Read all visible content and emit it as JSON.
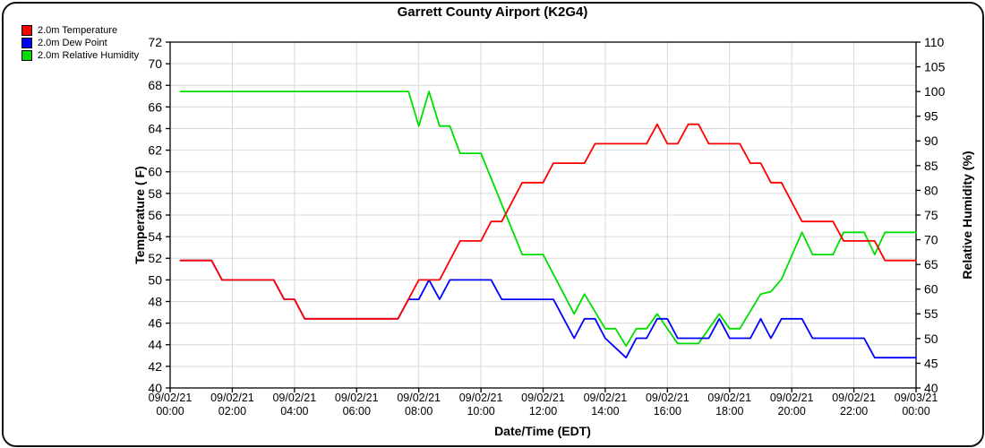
{
  "title": "Garrett County Airport (K2G4)",
  "legend": [
    {
      "label": "2.0m Temperature",
      "color": "#ff0000"
    },
    {
      "label": "2.0m Dew Point",
      "color": "#0000ff"
    },
    {
      "label": "2.0m Relative Humidity",
      "color": "#00dd00"
    }
  ],
  "colors": {
    "grid": "#d9d9d9",
    "frame": "#000000",
    "background": "#ffffff"
  },
  "chart_data": {
    "type": "line",
    "title": "Garrett County Airport (K2G4)",
    "xlabel": "Date/Time (EDT)",
    "ylabel_left": "Temperature ( F)",
    "ylabel_right": "Relative Humidity (%)",
    "grid": true,
    "legend_position": "top-left",
    "x_hours_range": [
      0,
      24
    ],
    "x_ticks": [
      {
        "hour": 0,
        "date": "09/02/21",
        "time": "00:00"
      },
      {
        "hour": 2,
        "date": "09/02/21",
        "time": "02:00"
      },
      {
        "hour": 4,
        "date": "09/02/21",
        "time": "04:00"
      },
      {
        "hour": 6,
        "date": "09/02/21",
        "time": "06:00"
      },
      {
        "hour": 8,
        "date": "09/02/21",
        "time": "08:00"
      },
      {
        "hour": 10,
        "date": "09/02/21",
        "time": "10:00"
      },
      {
        "hour": 12,
        "date": "09/02/21",
        "time": "12:00"
      },
      {
        "hour": 14,
        "date": "09/02/21",
        "time": "14:00"
      },
      {
        "hour": 16,
        "date": "09/02/21",
        "time": "16:00"
      },
      {
        "hour": 18,
        "date": "09/02/21",
        "time": "18:00"
      },
      {
        "hour": 20,
        "date": "09/02/21",
        "time": "20:00"
      },
      {
        "hour": 22,
        "date": "09/02/21",
        "time": "22:00"
      },
      {
        "hour": 24,
        "date": "09/03/21",
        "time": "00:00"
      }
    ],
    "y_left": {
      "min": 40,
      "max": 72,
      "step": 2,
      "ticks": [
        40,
        42,
        44,
        46,
        48,
        50,
        52,
        54,
        56,
        58,
        60,
        62,
        64,
        66,
        68,
        70,
        72
      ]
    },
    "y_right": {
      "min": 40,
      "max": 110,
      "step": 5,
      "ticks": [
        40,
        45,
        50,
        55,
        60,
        65,
        70,
        75,
        80,
        85,
        90,
        95,
        100,
        105,
        110
      ]
    },
    "series": [
      {
        "name": "2.0m Relative Humidity",
        "axis": "right",
        "color": "#00dd00",
        "units": "%",
        "points": [
          [
            0.33,
            100
          ],
          [
            7.67,
            100
          ],
          [
            8.0,
            93
          ],
          [
            8.33,
            100
          ],
          [
            8.67,
            93
          ],
          [
            9.0,
            93
          ],
          [
            9.33,
            87.5
          ],
          [
            10.0,
            87.5
          ],
          [
            11.33,
            67
          ],
          [
            12.0,
            67
          ],
          [
            13.0,
            55
          ],
          [
            13.33,
            59
          ],
          [
            14.0,
            52
          ],
          [
            14.33,
            52
          ],
          [
            14.67,
            48.5
          ],
          [
            15.0,
            52
          ],
          [
            15.33,
            52
          ],
          [
            15.67,
            55
          ],
          [
            16.33,
            49
          ],
          [
            17.0,
            49
          ],
          [
            17.67,
            55
          ],
          [
            18.0,
            52
          ],
          [
            18.33,
            52
          ],
          [
            19.0,
            59
          ],
          [
            19.33,
            59.5
          ],
          [
            19.67,
            62
          ],
          [
            20.33,
            71.5
          ],
          [
            20.67,
            67
          ],
          [
            21.33,
            67
          ],
          [
            21.67,
            71.5
          ],
          [
            22.33,
            71.5
          ],
          [
            22.67,
            67
          ],
          [
            23.0,
            71.5
          ],
          [
            24.0,
            71.5
          ]
        ]
      },
      {
        "name": "2.0m Dew Point",
        "axis": "left",
        "color": "#0000ff",
        "units": "F",
        "points": [
          [
            0.33,
            51.8
          ],
          [
            1.33,
            51.8
          ],
          [
            1.67,
            50.0
          ],
          [
            3.33,
            50.0
          ],
          [
            3.67,
            48.2
          ],
          [
            4.0,
            48.2
          ],
          [
            4.33,
            46.4
          ],
          [
            7.33,
            46.4
          ],
          [
            7.67,
            48.2
          ],
          [
            8.0,
            48.2
          ],
          [
            8.33,
            50.0
          ],
          [
            8.67,
            48.2
          ],
          [
            9.0,
            50.0
          ],
          [
            10.33,
            50.0
          ],
          [
            10.67,
            48.2
          ],
          [
            12.33,
            48.2
          ],
          [
            13.0,
            44.6
          ],
          [
            13.33,
            46.4
          ],
          [
            13.67,
            46.4
          ],
          [
            14.0,
            44.6
          ],
          [
            14.67,
            42.8
          ],
          [
            15.0,
            44.6
          ],
          [
            15.33,
            44.6
          ],
          [
            15.67,
            46.4
          ],
          [
            16.0,
            46.4
          ],
          [
            16.33,
            44.6
          ],
          [
            17.33,
            44.6
          ],
          [
            17.67,
            46.4
          ],
          [
            18.0,
            44.6
          ],
          [
            18.67,
            44.6
          ],
          [
            19.0,
            46.4
          ],
          [
            19.33,
            44.6
          ],
          [
            19.67,
            46.4
          ],
          [
            20.33,
            46.4
          ],
          [
            20.67,
            44.6
          ],
          [
            22.33,
            44.6
          ],
          [
            22.67,
            42.8
          ],
          [
            24.0,
            42.8
          ]
        ]
      },
      {
        "name": "2.0m Temperature",
        "axis": "left",
        "color": "#ff0000",
        "units": "F",
        "points": [
          [
            0.33,
            51.8
          ],
          [
            1.33,
            51.8
          ],
          [
            1.67,
            50.0
          ],
          [
            3.33,
            50.0
          ],
          [
            3.67,
            48.2
          ],
          [
            4.0,
            48.2
          ],
          [
            4.33,
            46.4
          ],
          [
            7.33,
            46.4
          ],
          [
            8.0,
            50.0
          ],
          [
            8.67,
            50.0
          ],
          [
            9.33,
            53.6
          ],
          [
            10.0,
            53.6
          ],
          [
            10.33,
            55.4
          ],
          [
            10.67,
            55.4
          ],
          [
            11.33,
            59.0
          ],
          [
            12.0,
            59.0
          ],
          [
            12.33,
            60.8
          ],
          [
            13.33,
            60.8
          ],
          [
            13.67,
            62.6
          ],
          [
            15.33,
            62.6
          ],
          [
            15.67,
            64.4
          ],
          [
            16.0,
            62.6
          ],
          [
            16.33,
            62.6
          ],
          [
            16.67,
            64.4
          ],
          [
            17.0,
            64.4
          ],
          [
            17.33,
            62.6
          ],
          [
            18.33,
            62.6
          ],
          [
            18.67,
            60.8
          ],
          [
            19.0,
            60.8
          ],
          [
            19.33,
            59.0
          ],
          [
            19.67,
            59.0
          ],
          [
            20.33,
            55.4
          ],
          [
            21.33,
            55.4
          ],
          [
            21.67,
            53.6
          ],
          [
            22.67,
            53.6
          ],
          [
            23.0,
            51.8
          ],
          [
            24.0,
            51.8
          ]
        ]
      }
    ]
  }
}
